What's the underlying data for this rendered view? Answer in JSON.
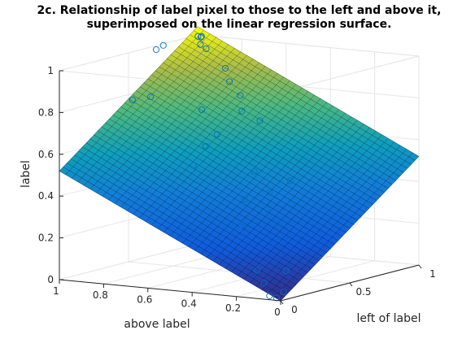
{
  "chart_data": {
    "type": "scatter",
    "title": "2c. Relationship of label pixel to those to the left and above it,",
    "subtitle": "superimposed on the linear regression surface.",
    "xlabel": "left of label",
    "ylabel": "above label",
    "zlabel": "label",
    "xlim": [
      0,
      1
    ],
    "ylim": [
      0,
      1
    ],
    "zlim": [
      0,
      1
    ],
    "x_ticks": [
      "0",
      "0.5",
      "1"
    ],
    "y_ticks": [
      "0",
      "0.2",
      "0.4",
      "0.6",
      "0.8",
      "1"
    ],
    "z_ticks": [
      "0",
      "0.2",
      "0.4",
      "0.6",
      "0.8",
      "1"
    ],
    "grid": true,
    "surface": {
      "type": "linear-regression-plane",
      "z_at_x0_y0": 0.0,
      "z_at_x1_y0": 0.52,
      "z_at_x0_y1": 0.52,
      "z_at_x1_y1": 1.04,
      "colormap": "parula"
    },
    "marker_color": "#0072bd",
    "points": [
      {
        "x": 0.97,
        "y": 0.98,
        "z": 1.0
      },
      {
        "x": 0.96,
        "y": 0.96,
        "z": 1.0
      },
      {
        "x": 0.98,
        "y": 0.97,
        "z": 1.0
      },
      {
        "x": 0.94,
        "y": 0.95,
        "z": 0.97
      },
      {
        "x": 0.95,
        "y": 0.93,
        "z": 0.95
      },
      {
        "x": 0.62,
        "y": 0.95,
        "z": 1.0
      },
      {
        "x": 0.72,
        "y": 0.98,
        "z": 1.0
      },
      {
        "x": 0.5,
        "y": 0.9,
        "z": 0.8
      },
      {
        "x": 0.4,
        "y": 0.92,
        "z": 0.8
      },
      {
        "x": 0.25,
        "y": 0.55,
        "z": 0.55
      },
      {
        "x": 0.2,
        "y": 0.3,
        "z": 0.3
      },
      {
        "x": 0.45,
        "y": 0.4,
        "z": 0.5
      },
      {
        "x": 0.55,
        "y": 0.3,
        "z": 0.45
      },
      {
        "x": 0.15,
        "y": 0.2,
        "z": 0.1
      },
      {
        "x": 0.05,
        "y": 0.05,
        "z": 0.0
      },
      {
        "x": 0.1,
        "y": 0.05,
        "z": 0.02
      },
      {
        "x": 0.3,
        "y": 0.2,
        "z": 0.3
      },
      {
        "x": 0.35,
        "y": 0.28,
        "z": 0.35
      },
      {
        "x": 0.4,
        "y": 0.3,
        "z": 0.42
      },
      {
        "x": 0.3,
        "y": 0.35,
        "z": 0.4
      },
      {
        "x": 0.6,
        "y": 0.55,
        "z": 0.75
      },
      {
        "x": 0.65,
        "y": 0.5,
        "z": 0.7
      },
      {
        "x": 0.7,
        "y": 0.62,
        "z": 0.8
      },
      {
        "x": 0.5,
        "y": 0.6,
        "z": 0.65
      },
      {
        "x": 0.75,
        "y": 0.7,
        "z": 0.85
      },
      {
        "x": 0.8,
        "y": 0.75,
        "z": 0.9
      },
      {
        "x": 0.55,
        "y": 0.7,
        "z": 0.75
      },
      {
        "x": 0.45,
        "y": 0.62,
        "z": 0.6
      },
      {
        "x": 0.2,
        "y": 0.1,
        "z": 0.1
      },
      {
        "x": 0.12,
        "y": 0.15,
        "z": 0.05
      },
      {
        "x": 0.08,
        "y": 0.1,
        "z": 0.0
      }
    ]
  }
}
